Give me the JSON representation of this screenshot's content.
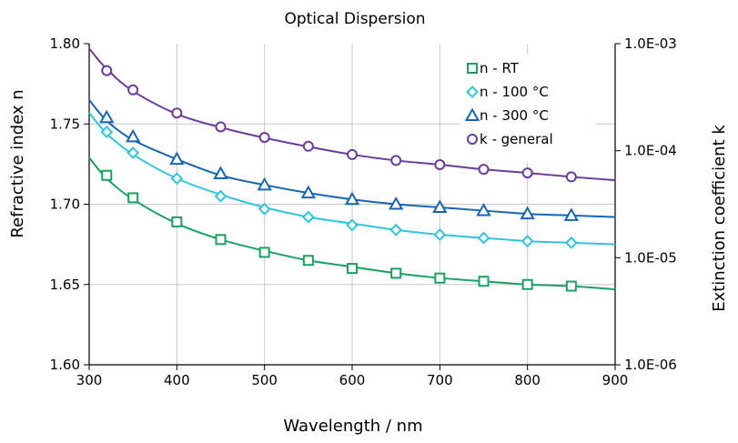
{
  "chart_data": {
    "type": "line",
    "title": "Optical Dispersion",
    "xlabel": "Wavelength / nm",
    "ylabel": "Refractive index n",
    "y2label": "Extinction coefficient k",
    "xlim": [
      300,
      900
    ],
    "ylim": [
      1.6,
      1.8
    ],
    "y2lim": [
      1e-06,
      0.001
    ],
    "y2scale": "log",
    "grid": true,
    "legend_position": "top-right",
    "x_ticks": [
      "300",
      "400",
      "500",
      "600",
      "700",
      "800",
      "900"
    ],
    "y_ticks": [
      "1.60",
      "1.65",
      "1.70",
      "1.75",
      "1.80"
    ],
    "y2_ticks": [
      "1.0E-06",
      "1.0E-05",
      "1.0E-04",
      "1.0E-03"
    ],
    "series": [
      {
        "name": "n - RT",
        "axis": "left",
        "marker": "square",
        "color": "#1aa160",
        "curve_x": [
          300,
          320,
          350,
          400,
          450,
          500,
          550,
          600,
          650,
          700,
          750,
          800,
          850,
          900
        ],
        "curve_y": [
          1.729,
          1.716,
          1.703,
          1.688,
          1.678,
          1.671,
          1.665,
          1.661,
          1.657,
          1.654,
          1.652,
          1.65,
          1.649,
          1.647
        ],
        "marker_x": [
          320,
          350,
          400,
          450,
          500,
          550,
          600,
          650,
          700,
          750,
          800,
          850
        ],
        "marker_y": [
          1.718,
          1.704,
          1.689,
          1.678,
          1.67,
          1.665,
          1.66,
          1.657,
          1.654,
          1.652,
          1.65,
          1.649
        ]
      },
      {
        "name": "n - 100 °C",
        "axis": "left",
        "marker": "diamond",
        "color": "#2ec4dc",
        "curve_x": [
          300,
          320,
          350,
          400,
          450,
          500,
          550,
          600,
          650,
          700,
          750,
          800,
          850,
          900
        ],
        "curve_y": [
          1.757,
          1.744,
          1.731,
          1.716,
          1.706,
          1.698,
          1.692,
          1.688,
          1.684,
          1.681,
          1.679,
          1.677,
          1.676,
          1.675
        ],
        "marker_x": [
          320,
          350,
          400,
          450,
          500,
          550,
          600,
          650,
          700,
          750,
          800,
          850
        ],
        "marker_y": [
          1.745,
          1.732,
          1.716,
          1.705,
          1.697,
          1.692,
          1.687,
          1.684,
          1.681,
          1.679,
          1.677,
          1.676
        ]
      },
      {
        "name": "n - 300 °C",
        "axis": "left",
        "marker": "triangle",
        "color": "#1565b4",
        "curve_x": [
          300,
          320,
          350,
          400,
          450,
          500,
          550,
          600,
          650,
          700,
          750,
          800,
          850,
          900
        ],
        "curve_y": [
          1.765,
          1.752,
          1.74,
          1.728,
          1.718,
          1.712,
          1.707,
          1.703,
          1.7,
          1.698,
          1.696,
          1.694,
          1.693,
          1.692
        ],
        "marker_x": [
          320,
          350,
          400,
          450,
          500,
          550,
          600,
          650,
          700,
          750,
          800,
          850
        ],
        "marker_y": [
          1.754,
          1.742,
          1.728,
          1.719,
          1.712,
          1.707,
          1.703,
          1.7,
          1.698,
          1.696,
          1.694,
          1.693
        ]
      },
      {
        "name": "k - general",
        "axis": "right",
        "marker": "circle",
        "color": "#6a3a9c",
        "curve_x": [
          300,
          320,
          350,
          400,
          450,
          500,
          550,
          600,
          650,
          700,
          750,
          800,
          850,
          900
        ],
        "curve_y": [
          0.0009,
          0.00058,
          0.00036,
          0.00022,
          0.000165,
          0.000132,
          0.000109,
          9.2e-05,
          8.1e-05,
          7.4e-05,
          6.7e-05,
          6.2e-05,
          5.7e-05,
          5.3e-05
        ],
        "marker_x": [
          320,
          350,
          400,
          450,
          500,
          550,
          600,
          650,
          700,
          750,
          800,
          850
        ],
        "marker_y": [
          0.00056,
          0.00037,
          0.000225,
          0.000167,
          0.000133,
          0.00011,
          9.2e-05,
          8.1e-05,
          7.4e-05,
          6.7e-05,
          6.2e-05,
          5.7e-05
        ]
      }
    ]
  }
}
